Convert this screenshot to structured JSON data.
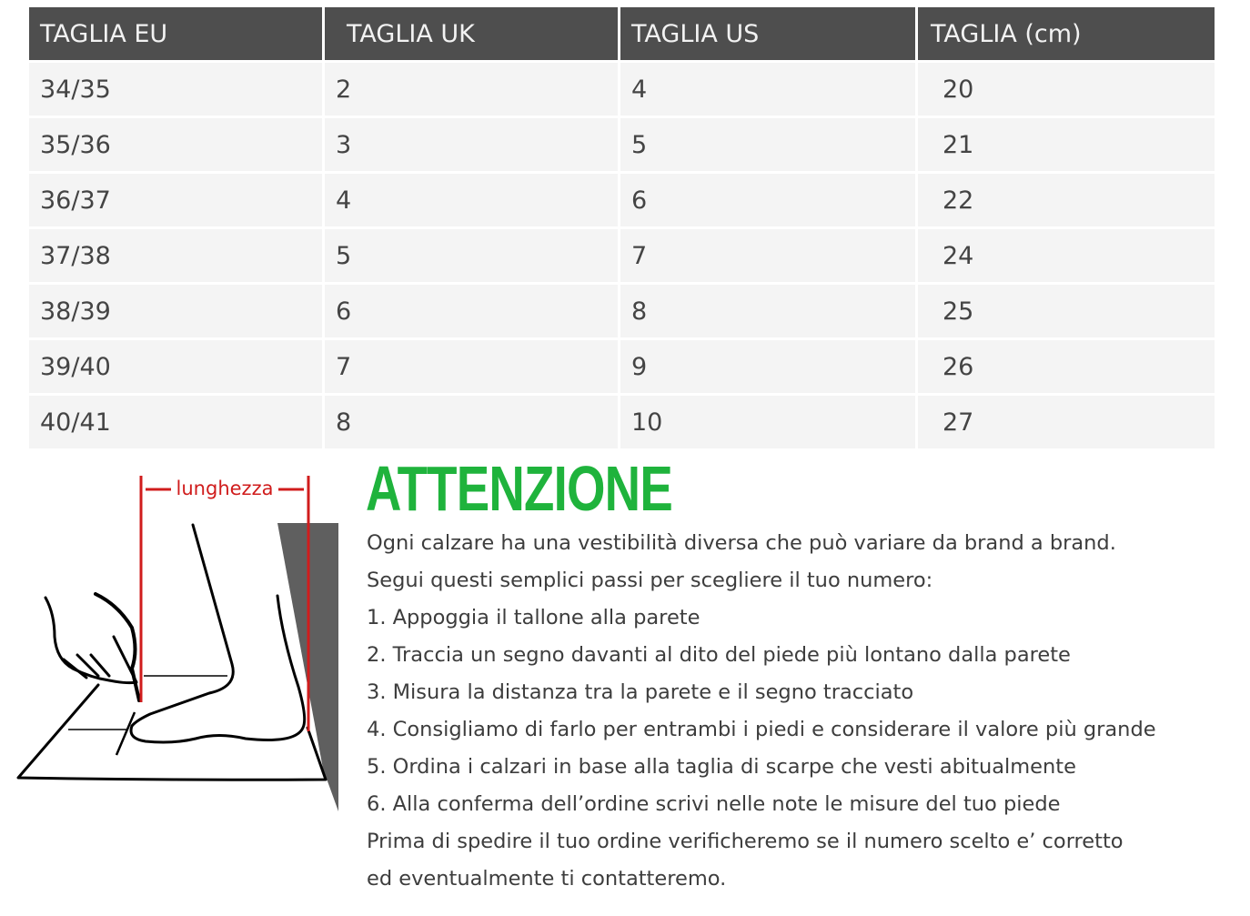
{
  "table": {
    "headers": [
      "TAGLIA EU",
      "TAGLIA UK",
      "TAGLIA US",
      "TAGLIA (cm)"
    ],
    "rows": [
      [
        "34/35",
        "2",
        "4",
        "20"
      ],
      [
        "35/36",
        "3",
        "5",
        "21"
      ],
      [
        "36/37",
        "4",
        "6",
        "22"
      ],
      [
        "37/38",
        "5",
        "7",
        "24"
      ],
      [
        "38/39",
        "6",
        "8",
        "25"
      ],
      [
        "39/40",
        "7",
        "9",
        "26"
      ],
      [
        "40/41",
        "8",
        "10",
        "27"
      ]
    ]
  },
  "illustration": {
    "length_label": "lunghezza",
    "accent_color": "#d01c1c",
    "wall_color": "#5f5f5f"
  },
  "notice": {
    "title": "ATTENZIONE",
    "title_color": "#1fb33c",
    "lines": [
      "Ogni calzare ha una vestibilità diversa che può variare da brand a brand.",
      "Segui questi semplici passi per scegliere il tuo numero:",
      "1.  Appoggia il tallone alla parete",
      "2. Traccia un segno davanti al dito del piede più lontano dalla parete",
      "3. Misura la distanza tra la parete e il segno tracciato",
      "4. Consigliamo di farlo per entrambi i piedi e considerare il valore più grande",
      "5. Ordina i calzari in base alla taglia di scarpe che vesti abitualmente",
      "6. Alla conferma dell’ordine scrivi nelle note le misure del tuo piede",
      "Prima di spedire il tuo ordine verificheremo se il numero scelto e’ corretto",
      "ed eventualmente ti contatteremo."
    ]
  }
}
